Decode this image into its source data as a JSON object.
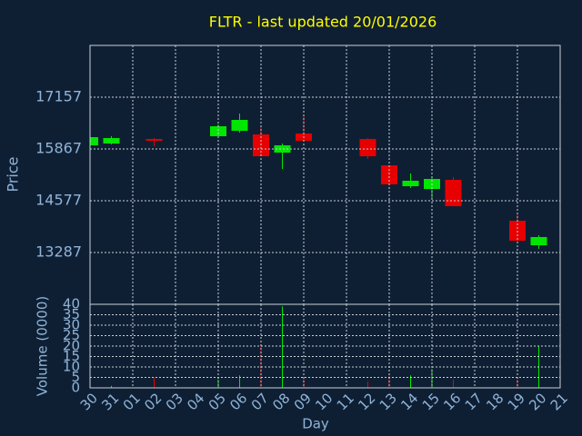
{
  "chart_data": [
    {
      "type": "candlestick",
      "title": "FLTR - last updated 20/01/2026",
      "y_label": "Price",
      "categories": [
        "30",
        "31",
        "01",
        "02",
        "03",
        "04",
        "05",
        "06",
        "07",
        "08",
        "09",
        "10",
        "11",
        "12",
        "13",
        "14",
        "15",
        "16",
        "17",
        "18",
        "19",
        "20",
        "21"
      ],
      "open": [
        15958,
        16003,
        null,
        16116,
        null,
        null,
        16184,
        16320,
        16229,
        15777,
        16252,
        null,
        null,
        16116,
        15460,
        14939,
        14871,
        15098,
        null,
        null,
        14079,
        13468,
        null
      ],
      "high": [
        16161,
        16184,
        null,
        16139,
        null,
        null,
        16478,
        16750,
        16410,
        16003,
        16682,
        null,
        null,
        16139,
        15460,
        15256,
        15143,
        15165,
        null,
        null,
        14260,
        13717,
        null
      ],
      "low": [
        15958,
        15980,
        null,
        15935,
        null,
        null,
        16184,
        16275,
        15686,
        15369,
        16071,
        null,
        null,
        15618,
        14985,
        14894,
        14600,
        14441,
        null,
        null,
        13514,
        13378,
        null
      ],
      "close": [
        16161,
        16139,
        null,
        16071,
        null,
        null,
        16433,
        16591,
        15686,
        15958,
        16071,
        null,
        null,
        15686,
        14985,
        15075,
        15120,
        14441,
        null,
        null,
        13581,
        13672,
        null
      ],
      "up_color": "#00e600",
      "down_color": "#e60000",
      "ylim": [
        11997,
        18447
      ],
      "yticks": [
        13287,
        14577,
        15867,
        17157
      ],
      "grid": true
    },
    {
      "type": "bar",
      "x_label": "Day",
      "y_label": "Volume (0000)",
      "values": [
        1,
        1,
        null,
        5,
        null,
        null,
        4,
        6,
        21,
        39,
        5,
        null,
        null,
        3,
        6,
        6,
        9,
        4,
        null,
        null,
        4,
        20,
        null
      ],
      "ylim": [
        0,
        40
      ],
      "yticks": [
        0,
        5,
        10,
        15,
        20,
        25,
        30,
        35,
        40
      ],
      "grid": true
    }
  ]
}
